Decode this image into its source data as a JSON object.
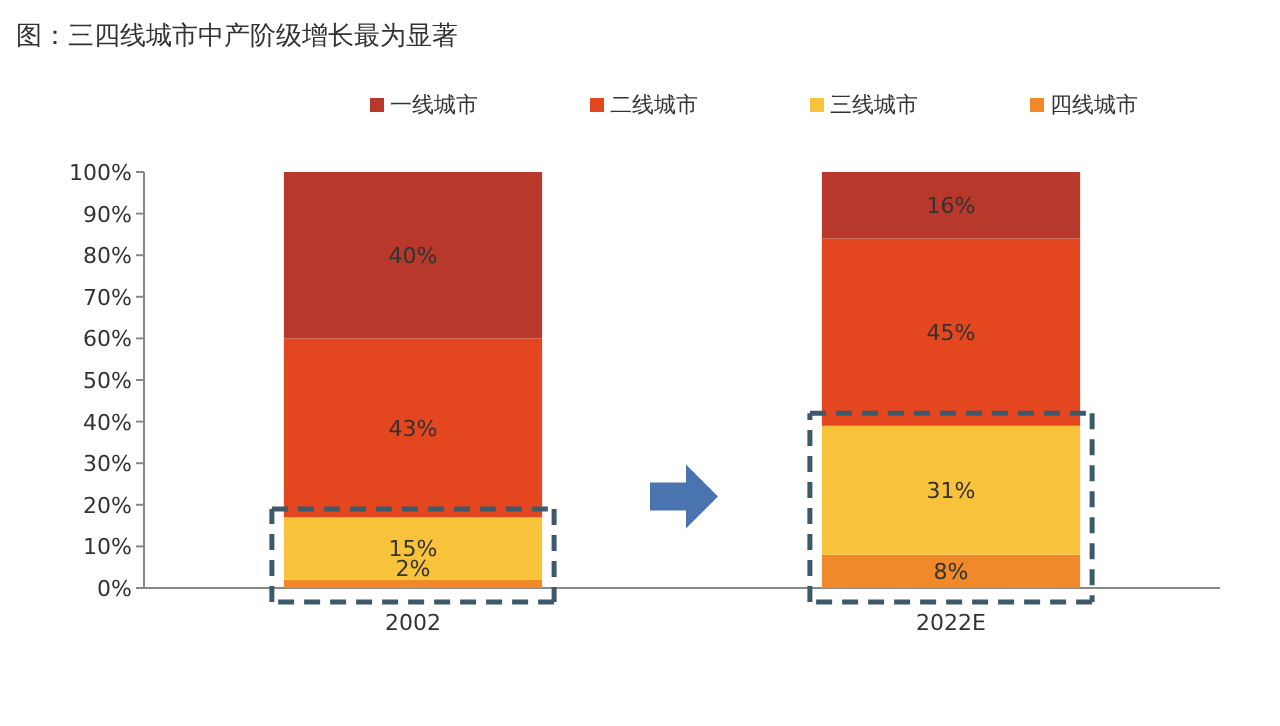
{
  "chart_data": {
    "type": "bar",
    "title": "图：三四线城市中产阶级增长最为显著",
    "categories": [
      "2002",
      "2022E"
    ],
    "stacked": true,
    "series": [
      {
        "name": "四线城市",
        "color": "#f0892a",
        "values": [
          2,
          8
        ],
        "value_labels": [
          "2%",
          "8%"
        ]
      },
      {
        "name": "三线城市",
        "color": "#f8c23a",
        "values": [
          15,
          31
        ],
        "value_labels": [
          "15%",
          "31%"
        ]
      },
      {
        "name": "二线城市",
        "color": "#e4461f",
        "values": [
          43,
          45
        ],
        "value_labels": [
          "43%",
          "45%"
        ]
      },
      {
        "name": "一线城市",
        "color": "#b8392b",
        "values": [
          40,
          16
        ],
        "value_labels": [
          "40%",
          "16%"
        ]
      }
    ],
    "ylim": [
      0,
      100
    ],
    "yticks": [
      {
        "value": 0,
        "label": "0%"
      },
      {
        "value": 10,
        "label": "10%"
      },
      {
        "value": 20,
        "label": "20%"
      },
      {
        "value": 30,
        "label": "30%"
      },
      {
        "value": 40,
        "label": "40%"
      },
      {
        "value": 50,
        "label": "50%"
      },
      {
        "value": 60,
        "label": "60%"
      },
      {
        "value": 70,
        "label": "70%"
      },
      {
        "value": 80,
        "label": "80%"
      },
      {
        "value": 90,
        "label": "90%"
      },
      {
        "value": 100,
        "label": "100%"
      }
    ],
    "grid": false,
    "legend": "top"
  }
}
